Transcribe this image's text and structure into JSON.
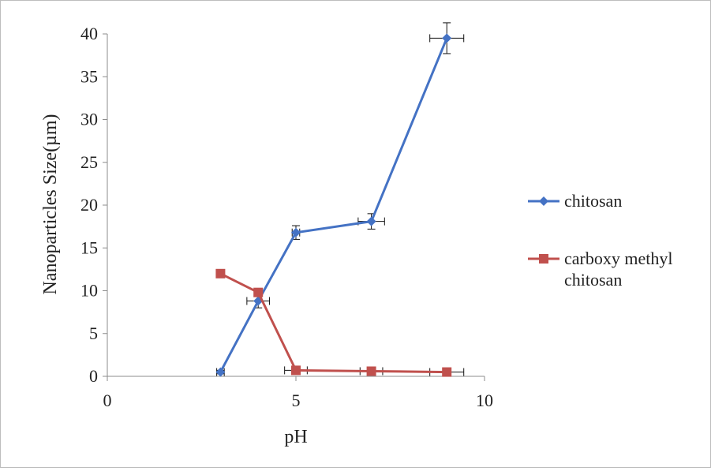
{
  "chart_data": {
    "type": "scatter",
    "title": "",
    "xlabel": "pH",
    "ylabel": "Nanoparticles Size(µm)",
    "xlim": [
      0,
      10
    ],
    "ylim": [
      0,
      40
    ],
    "xticks": [
      0,
      5,
      10
    ],
    "yticks": [
      0,
      5,
      10,
      15,
      20,
      25,
      30,
      35,
      40
    ],
    "grid": false,
    "legend_position": "right",
    "series": [
      {
        "name": "chitosan",
        "color": "#4472C4",
        "marker": "diamond",
        "x": [
          3,
          4,
          5,
          7,
          9
        ],
        "y": [
          0.5,
          8.8,
          16.8,
          18.1,
          39.5
        ],
        "y_error": [
          0.2,
          0.8,
          0.8,
          0.9,
          1.8
        ],
        "x_error": [
          0.1,
          0.3,
          0.1,
          0.35,
          0.45
        ]
      },
      {
        "name": "carboxy methyl chitosan",
        "color": "#C0504D",
        "marker": "square",
        "x": [
          3,
          4,
          5,
          7,
          9
        ],
        "y": [
          12.0,
          9.8,
          0.7,
          0.6,
          0.5
        ],
        "y_error": [
          0,
          0,
          0,
          0,
          0
        ],
        "x_error": [
          0,
          0,
          0.3,
          0.3,
          0.45
        ]
      }
    ]
  }
}
